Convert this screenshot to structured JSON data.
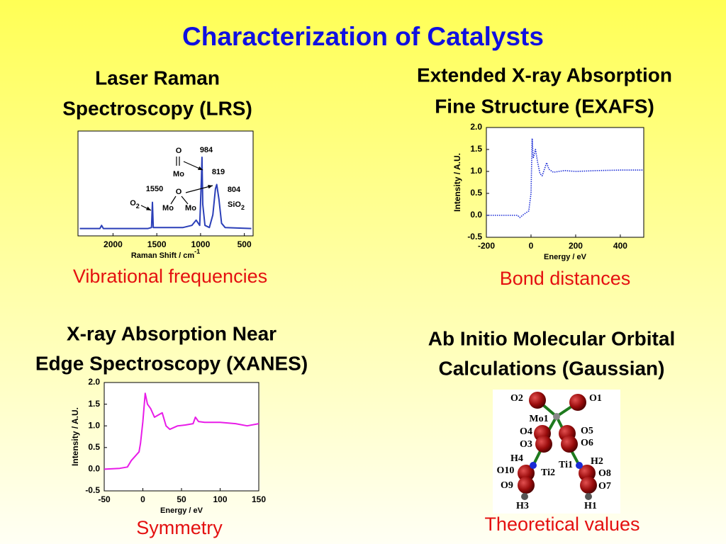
{
  "title": "Characterization of Catalysts",
  "panels": [
    {
      "heading": [
        "Laser Raman",
        "Spectroscopy (LRS)"
      ],
      "caption": "Vibrational frequencies",
      "chart": {
        "type": "line",
        "color": "#2b3fb8",
        "xlabel": "Raman Shift / cm",
        "xlabel_superscript": "-1",
        "xlim": [
          2400,
          400
        ],
        "xticks": [
          2000,
          1500,
          1000,
          500
        ],
        "ylim": [
          0,
          1
        ],
        "x": [
          2380,
          2150,
          2130,
          2110,
          1600,
          1560,
          1550,
          1540,
          1200,
          1100,
          1050,
          1010,
          990,
          984,
          975,
          950,
          900,
          860,
          830,
          815,
          790,
          760,
          720,
          420
        ],
        "values": [
          0.07,
          0.07,
          0.1,
          0.07,
          0.07,
          0.08,
          0.32,
          0.08,
          0.08,
          0.1,
          0.15,
          0.1,
          0.55,
          0.75,
          0.3,
          0.1,
          0.08,
          0.2,
          0.45,
          0.49,
          0.35,
          0.12,
          0.08,
          0.07
        ],
        "annotations": [
          {
            "text": "984"
          },
          {
            "text": "819"
          },
          {
            "text": "804"
          },
          {
            "text": "1550"
          },
          {
            "text": "O"
          },
          {
            "text": "Mo"
          },
          {
            "text": "O"
          },
          {
            "text": "Mo"
          },
          {
            "text": "Mo"
          },
          {
            "text": "O",
            "sub": "2"
          },
          {
            "text": "SiO",
            "sub": "2"
          }
        ]
      }
    },
    {
      "heading": [
        "Extended X-ray Absorption",
        "Fine Structure (EXAFS)"
      ],
      "caption": "Bond distances",
      "chart": {
        "type": "line",
        "color": "#1a2bd6",
        "dotted": true,
        "xlabel": "Energy / eV",
        "ylabel": "Intensity / A.U.",
        "xlim": [
          -200,
          505
        ],
        "xticks": [
          -200,
          0,
          200,
          400
        ],
        "ylim": [
          -0.5,
          2.0
        ],
        "yticks": [
          -0.5,
          {
            "value": 0,
            "label": "0.0"
          },
          0.5,
          {
            "value": 1,
            "label": "1.0"
          },
          1.5,
          {
            "value": 2,
            "label": "2.0"
          }
        ],
        "x": [
          -200,
          -150,
          -100,
          -60,
          -50,
          -30,
          -10,
          0,
          5,
          10,
          20,
          30,
          40,
          50,
          60,
          70,
          80,
          100,
          150,
          200,
          300,
          400,
          500
        ],
        "values": [
          0.0,
          0.0,
          0.0,
          0.0,
          -0.05,
          0.03,
          0.1,
          0.5,
          1.75,
          1.3,
          1.5,
          1.2,
          0.95,
          0.9,
          1.05,
          1.2,
          1.05,
          0.98,
          1.02,
          1.0,
          1.02,
          1.03,
          1.03
        ]
      }
    },
    {
      "heading": [
        "X-ray Absorption Near",
        "Edge Spectroscopy (XANES)"
      ],
      "caption": "Symmetry",
      "chart": {
        "type": "line",
        "color": "#e81ce8",
        "xlabel": "Energy / eV",
        "ylabel": "Intensity / A.U.",
        "xlim": [
          -50,
          150
        ],
        "xticks": [
          -50,
          0,
          50,
          100,
          150
        ],
        "ylim": [
          -0.5,
          2.0
        ],
        "yticks": [
          -0.5,
          {
            "value": 0,
            "label": "0.0"
          },
          0.5,
          {
            "value": 1,
            "label": "1.0"
          },
          1.5,
          {
            "value": 2,
            "label": "2.0"
          }
        ],
        "x": [
          -50,
          -30,
          -20,
          -15,
          -5,
          -3,
          0,
          3,
          6,
          10,
          15,
          20,
          25,
          30,
          35,
          45,
          55,
          65,
          68,
          72,
          80,
          100,
          120,
          135,
          150
        ],
        "values": [
          0.0,
          0.02,
          0.05,
          0.2,
          0.4,
          0.6,
          1.1,
          1.75,
          1.5,
          1.4,
          1.2,
          1.25,
          1.3,
          1.0,
          0.92,
          1.0,
          1.02,
          1.05,
          1.2,
          1.1,
          1.08,
          1.08,
          1.05,
          1.0,
          1.05
        ]
      }
    },
    {
      "heading": [
        "Ab Initio Molecular Orbital",
        "Calculations (Gaussian)"
      ],
      "caption": "Theoretical values",
      "atoms": [
        "O2",
        "O1",
        "Mo1",
        "O4",
        "O3",
        "O5",
        "O6",
        "H4",
        "Ti2",
        "Ti1",
        "H2",
        "O10",
        "O9",
        "O8",
        "O7",
        "H3",
        "H1"
      ]
    }
  ]
}
